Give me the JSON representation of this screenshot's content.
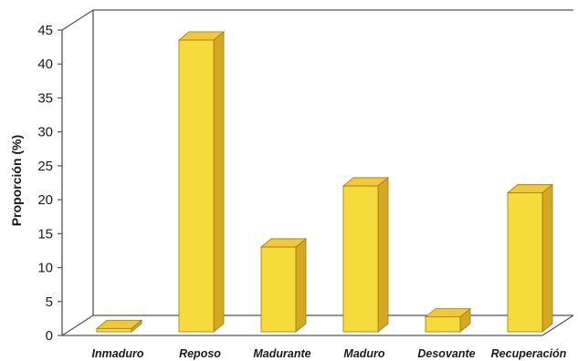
{
  "chart_data": {
    "type": "bar",
    "style": "3d-column",
    "title": "",
    "xlabel": "",
    "ylabel": "Proporción (%)",
    "categories": [
      "Inmaduro",
      "Reposo",
      "Madurante",
      "Maduro",
      "Desovante",
      "Recuperación"
    ],
    "series": [
      {
        "values": [
          0.5,
          43,
          12.5,
          21.5,
          2.2,
          20.5
        ]
      }
    ],
    "ylim": [
      0,
      45
    ],
    "yticks": [
      "0",
      "5",
      "10",
      "15",
      "20",
      "25",
      "30",
      "35",
      "40",
      "45"
    ],
    "grid": false,
    "legend": "none",
    "colors": {
      "bar_front": "#F5DC3A",
      "bar_side": "#D4A820",
      "bar_top": "#F0C838",
      "bar_edge": "#9C7A12",
      "wall_line": "#555555"
    }
  }
}
